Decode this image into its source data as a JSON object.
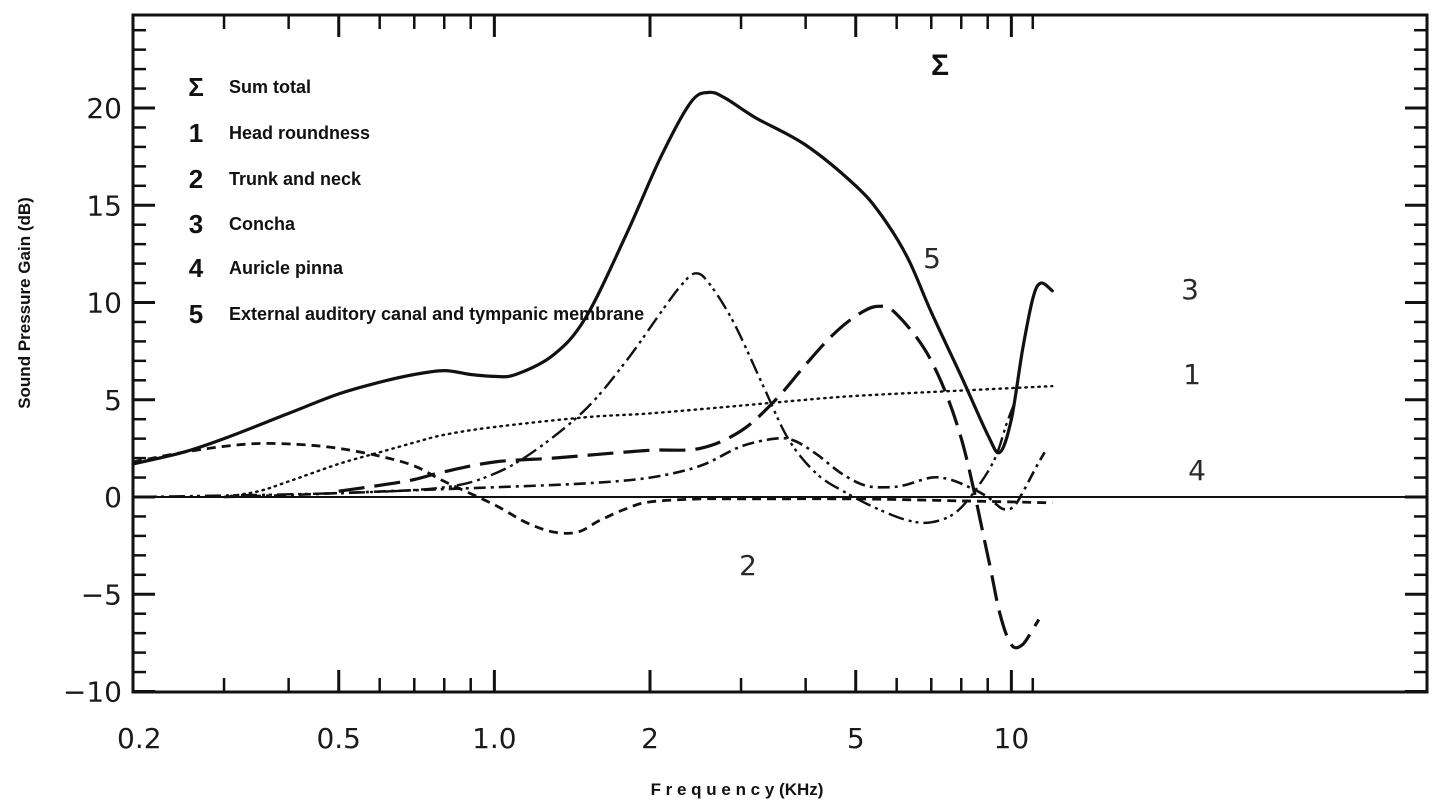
{
  "chart_data": {
    "type": "line",
    "title": "",
    "xlabel": "F r e q u e n c y (KHz)",
    "ylabel": "Sound Pressure Gain (dB)",
    "x_scale": "log",
    "xlim": [
      0.2,
      12
    ],
    "ylim": [
      -10.5,
      24.5
    ],
    "x_ticks": [
      0.2,
      0.5,
      1.0,
      2,
      5,
      10
    ],
    "x_tick_labels": [
      "0.2",
      "0.5",
      "1.0",
      "2",
      "5",
      "10"
    ],
    "y_ticks": [
      -10,
      -5,
      0,
      5,
      10,
      15,
      20
    ],
    "y_tick_labels": [
      "−10",
      "−5",
      "0",
      "5",
      "10",
      "15",
      "20"
    ],
    "grid": false,
    "legend_position": "top-left",
    "colors": {
      "sum_legend_text": "#e00000",
      "lines": "#111111"
    },
    "series": [
      {
        "id": "sum",
        "symbol": "Σ",
        "name": "Sum total",
        "curve_label": "Σ",
        "style": "solid",
        "points": [
          [
            0.2,
            1.7
          ],
          [
            0.25,
            2.3
          ],
          [
            0.3,
            3.0
          ],
          [
            0.4,
            4.3
          ],
          [
            0.5,
            5.3
          ],
          [
            0.6,
            5.9
          ],
          [
            0.7,
            6.3
          ],
          [
            0.8,
            6.5
          ],
          [
            0.9,
            6.3
          ],
          [
            1.0,
            6.2
          ],
          [
            1.1,
            6.3
          ],
          [
            1.3,
            7.3
          ],
          [
            1.5,
            9.2
          ],
          [
            1.8,
            13.5
          ],
          [
            2.1,
            17.5
          ],
          [
            2.4,
            20.3
          ],
          [
            2.6,
            20.8
          ],
          [
            2.8,
            20.5
          ],
          [
            3.2,
            19.5
          ],
          [
            4.0,
            18.1
          ],
          [
            5.0,
            16.0
          ],
          [
            5.6,
            14.5
          ],
          [
            6.3,
            12.3
          ],
          [
            7.0,
            9.5
          ],
          [
            8.0,
            6.2
          ],
          [
            9.0,
            3.2
          ],
          [
            9.5,
            2.3
          ],
          [
            10.0,
            4.0
          ],
          [
            10.5,
            7.5
          ],
          [
            11.0,
            10.2
          ],
          [
            11.4,
            11.0
          ],
          [
            12.0,
            10.6
          ]
        ]
      },
      {
        "id": "head",
        "symbol": "1",
        "name": "Head roundness",
        "curve_label": "1",
        "style": "dotted",
        "points": [
          [
            0.3,
            0.0
          ],
          [
            0.35,
            0.3
          ],
          [
            0.4,
            0.8
          ],
          [
            0.5,
            1.7
          ],
          [
            0.6,
            2.3
          ],
          [
            0.7,
            2.8
          ],
          [
            0.8,
            3.2
          ],
          [
            1.0,
            3.6
          ],
          [
            1.5,
            4.1
          ],
          [
            2.0,
            4.3
          ],
          [
            3.0,
            4.7
          ],
          [
            4.0,
            5.0
          ],
          [
            5.0,
            5.2
          ],
          [
            7.0,
            5.4
          ],
          [
            10.0,
            5.6
          ],
          [
            12.0,
            5.7
          ]
        ]
      },
      {
        "id": "trunk",
        "symbol": "2",
        "name": "Trunk and neck",
        "curve_label": "2",
        "style": "short-dash",
        "points": [
          [
            0.2,
            1.8
          ],
          [
            0.25,
            2.3
          ],
          [
            0.3,
            2.6
          ],
          [
            0.35,
            2.75
          ],
          [
            0.42,
            2.7
          ],
          [
            0.5,
            2.5
          ],
          [
            0.6,
            2.1
          ],
          [
            0.7,
            1.6
          ],
          [
            0.8,
            0.8
          ],
          [
            1.0,
            -0.4
          ],
          [
            1.15,
            -1.3
          ],
          [
            1.3,
            -1.8
          ],
          [
            1.45,
            -1.8
          ],
          [
            1.6,
            -1.2
          ],
          [
            1.8,
            -0.6
          ],
          [
            2.0,
            -0.25
          ],
          [
            2.5,
            -0.1
          ],
          [
            3.0,
            -0.1
          ],
          [
            5.0,
            -0.1
          ],
          [
            8.0,
            -0.2
          ],
          [
            12.0,
            -0.3
          ]
        ]
      },
      {
        "id": "concha",
        "symbol": "3",
        "name": "Concha",
        "curve_label": "3",
        "style": "long-dash",
        "points": [
          [
            0.5,
            0.3
          ],
          [
            0.6,
            0.6
          ],
          [
            0.7,
            0.9
          ],
          [
            0.8,
            1.3
          ],
          [
            1.0,
            1.8
          ],
          [
            1.3,
            2.0
          ],
          [
            1.6,
            2.2
          ],
          [
            2.0,
            2.4
          ],
          [
            2.5,
            2.5
          ],
          [
            3.0,
            3.4
          ],
          [
            3.5,
            5.0
          ],
          [
            4.0,
            6.8
          ],
          [
            4.5,
            8.3
          ],
          [
            5.0,
            9.3
          ],
          [
            5.5,
            9.8
          ],
          [
            6.0,
            9.4
          ],
          [
            7.0,
            7.0
          ],
          [
            8.0,
            3.0
          ],
          [
            9.0,
            -3.0
          ],
          [
            9.5,
            -6.0
          ],
          [
            10.0,
            -7.6
          ],
          [
            10.5,
            -7.6
          ],
          [
            11.0,
            -6.8
          ],
          [
            11.3,
            -6.3
          ]
        ]
      },
      {
        "id": "pinna",
        "symbol": "4",
        "name": "Auricle pinna",
        "curve_label": "4",
        "style": "dash-dot",
        "points": [
          [
            0.3,
            0.0
          ],
          [
            0.4,
            0.1
          ],
          [
            0.5,
            0.2
          ],
          [
            0.7,
            0.35
          ],
          [
            1.0,
            0.5
          ],
          [
            1.5,
            0.7
          ],
          [
            2.0,
            1.0
          ],
          [
            2.5,
            1.6
          ],
          [
            3.0,
            2.6
          ],
          [
            3.5,
            3.0
          ],
          [
            3.8,
            2.9
          ],
          [
            4.2,
            2.2
          ],
          [
            4.7,
            1.2
          ],
          [
            5.2,
            0.6
          ],
          [
            5.7,
            0.5
          ],
          [
            6.2,
            0.6
          ],
          [
            7.0,
            1.0
          ],
          [
            7.6,
            0.9
          ],
          [
            8.3,
            0.5
          ],
          [
            9.0,
            0.0
          ],
          [
            9.6,
            -0.6
          ],
          [
            10.1,
            -0.5
          ],
          [
            10.6,
            0.4
          ],
          [
            11.2,
            1.6
          ],
          [
            11.6,
            2.3
          ]
        ]
      },
      {
        "id": "canal",
        "symbol": "5",
        "name": "External auditory canal and tympanic membrane",
        "curve_label": "5",
        "style": "dash-dot-dot",
        "points": [
          [
            0.2,
            0.0
          ],
          [
            0.5,
            0.2
          ],
          [
            0.8,
            0.5
          ],
          [
            1.0,
            1.2
          ],
          [
            1.2,
            2.4
          ],
          [
            1.5,
            4.5
          ],
          [
            1.8,
            7.0
          ],
          [
            2.1,
            9.5
          ],
          [
            2.3,
            10.9
          ],
          [
            2.45,
            11.5
          ],
          [
            2.6,
            11.0
          ],
          [
            2.9,
            9.0
          ],
          [
            3.3,
            5.8
          ],
          [
            3.7,
            3.0
          ],
          [
            4.2,
            1.2
          ],
          [
            4.8,
            0.2
          ],
          [
            5.5,
            -0.6
          ],
          [
            6.3,
            -1.2
          ],
          [
            7.0,
            -1.3
          ],
          [
            7.8,
            -0.8
          ],
          [
            8.6,
            0.5
          ],
          [
            9.3,
            2.0
          ],
          [
            9.8,
            3.8
          ],
          [
            10.2,
            5.0
          ]
        ]
      }
    ]
  }
}
